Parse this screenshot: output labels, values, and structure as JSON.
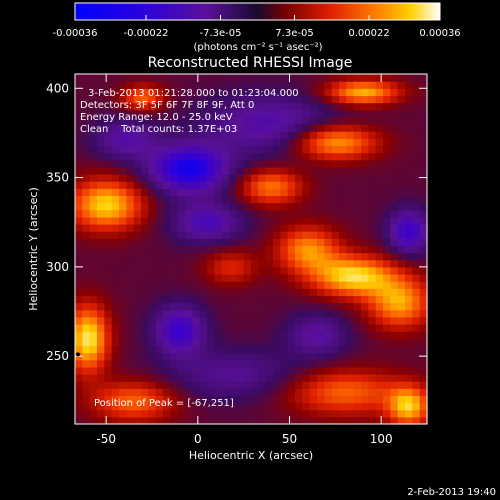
{
  "colorbar": {
    "tick_labels": [
      "-0.00036",
      "-0.00022",
      "-7.3e-05",
      "7.3e-05",
      "0.00022",
      "0.00036"
    ],
    "tick_values": [
      -0.00036,
      -0.00022,
      -7.3e-05,
      7.3e-05,
      0.00022,
      0.00036
    ],
    "range": [
      -0.00036,
      0.00036
    ],
    "units": "(photons cm⁻² s⁻¹ asec⁻²)"
  },
  "title": "Reconstructed RHESSI Image",
  "annotations": [
    "3-Feb-2013 01:21:28.000 to 01:23:04.000",
    "Detectors: 3F 5F 6F 7F 8F 9F, Att 0",
    "Energy Range: 12.0 - 25.0 keV",
    "Clean    Total counts: 1.37E+03"
  ],
  "peak_label": "Position of Peak = [-67,251]",
  "footer_timestamp": "2-Feb-2013 19:40",
  "chart_data": {
    "type": "heatmap",
    "title": "Reconstructed RHESSI Image",
    "xlabel": "Heliocentric X (arcsec)",
    "ylabel": "Heliocentric Y (arcsec)",
    "xlim": [
      -67,
      125
    ],
    "ylim": [
      212,
      408
    ],
    "x_ticks": [
      -50,
      0,
      50,
      100
    ],
    "x_tick_labels": [
      "-50",
      "0",
      "50",
      "100"
    ],
    "y_ticks": [
      250,
      300,
      350,
      400
    ],
    "y_tick_labels": [
      "250",
      "300",
      "350",
      "400"
    ],
    "colormap": [
      "#0000ff",
      "#3b00cc",
      "#5a1099",
      "#3a0a5e",
      "#8a0000",
      "#e02000",
      "#ff6a00",
      "#ffd000",
      "#ffffff"
    ],
    "peak_position": [
      -67,
      251
    ],
    "cell_size_arcsec": 4,
    "blobs": [
      {
        "x": -5,
        "y": 355,
        "sx": 16,
        "sy": 10,
        "v": -0.00028
      },
      {
        "x": -40,
        "y": 372,
        "sx": 12,
        "sy": 8,
        "v": -0.00015
      },
      {
        "x": 40,
        "y": 380,
        "sx": 26,
        "sy": 12,
        "v": -0.00016
      },
      {
        "x": 115,
        "y": 320,
        "sx": 8,
        "sy": 9,
        "v": -0.00022
      },
      {
        "x": 5,
        "y": 325,
        "sx": 14,
        "sy": 8,
        "v": -0.00018
      },
      {
        "x": -10,
        "y": 265,
        "sx": 10,
        "sy": 10,
        "v": -0.00022
      },
      {
        "x": 65,
        "y": 262,
        "sx": 12,
        "sy": 9,
        "v": -0.00014
      },
      {
        "x": 20,
        "y": 240,
        "sx": 26,
        "sy": 10,
        "v": -0.00012
      },
      {
        "x": 75,
        "y": 370,
        "sx": 16,
        "sy": 7,
        "v": 0.0003
      },
      {
        "x": 90,
        "y": 398,
        "sx": 14,
        "sy": 5,
        "v": 0.0003
      },
      {
        "x": -30,
        "y": 395,
        "sx": 8,
        "sy": 5,
        "v": 0.00022
      },
      {
        "x": 40,
        "y": 345,
        "sx": 12,
        "sy": 7,
        "v": 0.00024
      },
      {
        "x": -50,
        "y": 335,
        "sx": 14,
        "sy": 10,
        "v": 0.00033
      },
      {
        "x": -60,
        "y": 260,
        "sx": 8,
        "sy": 13,
        "v": 0.00036
      },
      {
        "x": -35,
        "y": 225,
        "sx": 16,
        "sy": 8,
        "v": 0.00022
      },
      {
        "x": 60,
        "y": 310,
        "sx": 12,
        "sy": 9,
        "v": 0.00026
      },
      {
        "x": 85,
        "y": 295,
        "sx": 16,
        "sy": 8,
        "v": 0.00034
      },
      {
        "x": 110,
        "y": 280,
        "sx": 12,
        "sy": 10,
        "v": 0.00028
      },
      {
        "x": 80,
        "y": 230,
        "sx": 22,
        "sy": 9,
        "v": 0.00022
      },
      {
        "x": 115,
        "y": 222,
        "sx": 8,
        "sy": 8,
        "v": 0.0003
      },
      {
        "x": 18,
        "y": 300,
        "sx": 10,
        "sy": 7,
        "v": 0.00014
      }
    ]
  }
}
